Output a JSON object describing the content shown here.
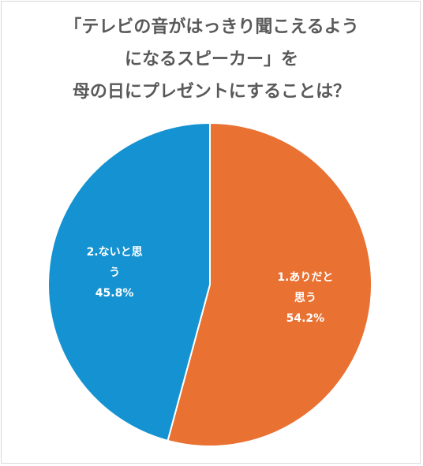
{
  "chart_data": {
    "type": "pie",
    "title_lines": [
      "「テレビの音がはっきり聞こえるよう",
      "になるスピーカー」を",
      "母の日にプレゼントにすることは？"
    ],
    "slices": [
      {
        "name": "1.ありだと思う",
        "label_lines": [
          "1.ありだと",
          "思う"
        ],
        "value": 54.2,
        "value_label": "54.2%",
        "color": "#e97132"
      },
      {
        "name": "2.ないと思う",
        "label_lines": [
          "2.ないと思",
          "う"
        ],
        "value": 45.8,
        "value_label": "45.8%",
        "color": "#1592d1"
      }
    ],
    "legend": "none"
  }
}
